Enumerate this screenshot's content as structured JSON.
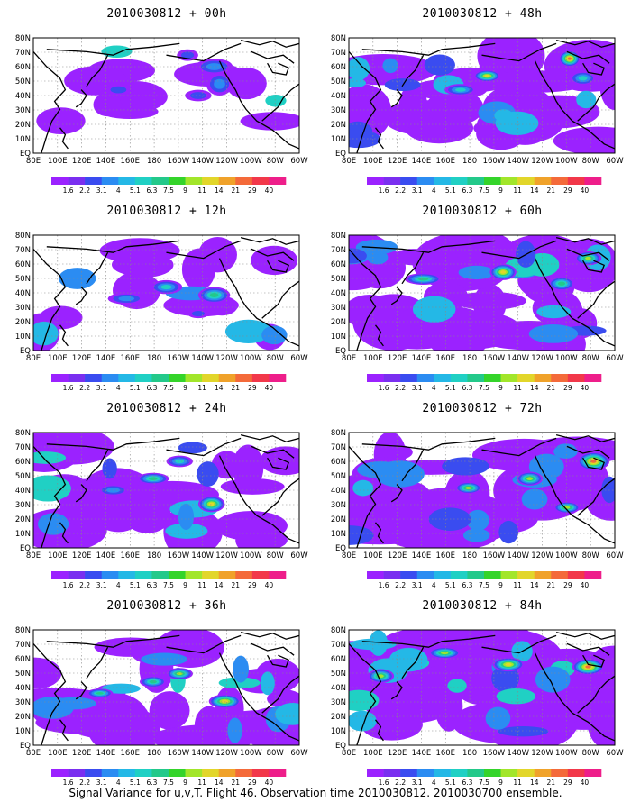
{
  "footer": "Signal Variance for u,v,T. Flight 46. Observation time 2010030812. 2010030700 ensemble.",
  "chart_data": [
    {
      "type": "heatmap",
      "title": "2010030812 + 00h",
      "coverage": 0.1,
      "blobs": [
        [
          0.68,
          0.25,
          0.07,
          0.07,
          0.9
        ],
        [
          0.7,
          0.4,
          0.05,
          0.1,
          1.0
        ],
        [
          0.32,
          0.45,
          0.05,
          0.05,
          0.6
        ],
        [
          0.62,
          0.5,
          0.05,
          0.05,
          0.6
        ],
        [
          0.58,
          0.15,
          0.04,
          0.05,
          0.6
        ]
      ]
    },
    {
      "type": "heatmap",
      "title": "2010030812 + 48h",
      "coverage": 0.62,
      "blobs": [
        [
          0.52,
          0.33,
          0.05,
          0.05,
          2.2
        ],
        [
          0.83,
          0.18,
          0.04,
          0.07,
          2.5
        ],
        [
          0.42,
          0.45,
          0.06,
          0.05,
          1.4
        ],
        [
          0.88,
          0.35,
          0.05,
          0.06,
          1.3
        ]
      ]
    },
    {
      "type": "heatmap",
      "title": "2010030812 + 12h",
      "coverage": 0.24,
      "blobs": [
        [
          0.5,
          0.45,
          0.06,
          0.06,
          1.4
        ],
        [
          0.68,
          0.52,
          0.06,
          0.07,
          1.6
        ],
        [
          0.35,
          0.55,
          0.07,
          0.05,
          1.0
        ],
        [
          0.62,
          0.68,
          0.04,
          0.04,
          0.8
        ]
      ]
    },
    {
      "type": "heatmap",
      "title": "2010030812 + 60h",
      "coverage": 0.68,
      "blobs": [
        [
          0.58,
          0.32,
          0.05,
          0.07,
          2.3
        ],
        [
          0.8,
          0.42,
          0.05,
          0.06,
          1.8
        ],
        [
          0.28,
          0.38,
          0.07,
          0.05,
          1.5
        ],
        [
          0.9,
          0.2,
          0.05,
          0.06,
          1.9
        ]
      ]
    },
    {
      "type": "heatmap",
      "title": "2010030812 + 24h",
      "coverage": 0.45,
      "blobs": [
        [
          0.67,
          0.62,
          0.05,
          0.07,
          2.3
        ],
        [
          0.45,
          0.4,
          0.06,
          0.05,
          1.5
        ],
        [
          0.55,
          0.25,
          0.05,
          0.05,
          1.4
        ],
        [
          0.3,
          0.5,
          0.06,
          0.05,
          1.1
        ]
      ]
    },
    {
      "type": "heatmap",
      "title": "2010030812 + 72h",
      "coverage": 0.76,
      "blobs": [
        [
          0.92,
          0.25,
          0.06,
          0.08,
          2.5
        ],
        [
          0.45,
          0.48,
          0.05,
          0.05,
          2.0
        ],
        [
          0.68,
          0.4,
          0.05,
          0.06,
          2.0
        ],
        [
          0.82,
          0.65,
          0.05,
          0.05,
          1.9
        ]
      ]
    },
    {
      "type": "heatmap",
      "title": "2010030812 + 36h",
      "coverage": 0.55,
      "blobs": [
        [
          0.72,
          0.62,
          0.06,
          0.06,
          2.4
        ],
        [
          0.55,
          0.38,
          0.05,
          0.05,
          2.0
        ],
        [
          0.45,
          0.45,
          0.05,
          0.05,
          1.7
        ],
        [
          0.25,
          0.55,
          0.05,
          0.04,
          1.6
        ]
      ]
    },
    {
      "type": "heatmap",
      "title": "2010030812 + 84h",
      "coverage": 0.8,
      "blobs": [
        [
          0.9,
          0.32,
          0.06,
          0.07,
          2.5
        ],
        [
          0.6,
          0.3,
          0.06,
          0.06,
          2.2
        ],
        [
          0.36,
          0.2,
          0.06,
          0.05,
          2.1
        ],
        [
          0.12,
          0.4,
          0.05,
          0.06,
          2.0
        ]
      ]
    }
  ],
  "axes": {
    "x_ticks": [
      "80E",
      "100E",
      "120E",
      "140E",
      "160E",
      "180",
      "160W",
      "140W",
      "120W",
      "100W",
      "80W",
      "60W"
    ],
    "y_ticks": [
      "EQ",
      "10N",
      "20N",
      "30N",
      "40N",
      "50N",
      "60N",
      "70N",
      "80N"
    ]
  },
  "colorbar": {
    "labels": [
      "1.6",
      "2.2",
      "3.1",
      "4",
      "5.1",
      "6.3",
      "7.5",
      "9",
      "11",
      "14",
      "21",
      "29",
      "40"
    ],
    "colors": [
      "#9b22ff",
      "#7a2ff0",
      "#3a4cf0",
      "#2b8cf2",
      "#24b8e6",
      "#20d0c4",
      "#23c98a",
      "#34d42a",
      "#a2e62a",
      "#e2d62a",
      "#f0a22a",
      "#f46a3a",
      "#f2384a",
      "#ee1e8a"
    ]
  }
}
